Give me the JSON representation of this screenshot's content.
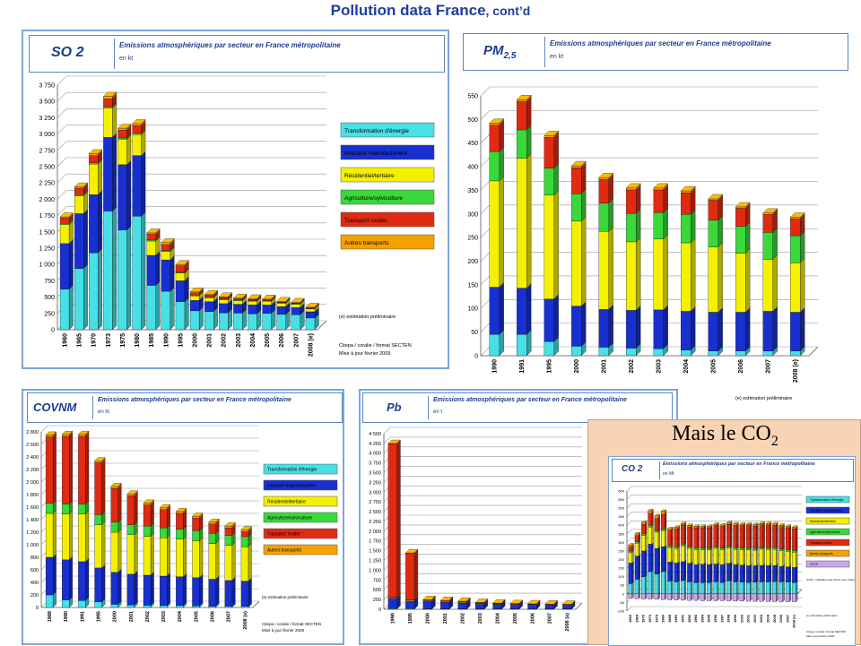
{
  "page": {
    "title_bold": "Pollution data France",
    "title_rest": ", cont’d"
  },
  "colors": {
    "energy": "#47e0e6",
    "industry": "#1830d0",
    "residential": "#f4f000",
    "agriculture": "#3ad83a",
    "road": "#e02a12",
    "other": "#f5a200",
    "utcf": "#caa5ee"
  },
  "labels": {
    "sector_title": "Emissions atmosphériques par secteur en France métropolitaine",
    "estimation": "(e) estimation préliminaire",
    "source1": "Citepa / coralie / format SECTEN",
    "source2": "Mise à jour février 2009",
    "co2_note": "UTCF : Utilisation des Terres, leur Changement et la Forêt"
  },
  "legend": [
    "Transformation d'énergie",
    "Industrie manufacturière",
    "Résidentiel/tertiaire",
    "Agriculture/sylviculture",
    "Transport routier",
    "Autres transports"
  ],
  "co2_extra_legend": "UTCF",
  "co2_title": "Mais le CO",
  "co2_sub": "2",
  "chart_data": [
    {
      "id": "so2",
      "type": "bar",
      "stacked": true,
      "pollutant": "SO 2",
      "unit": "en kt",
      "ylim": [
        0,
        3750
      ],
      "yticks": [
        "0",
        "250",
        "500",
        "750",
        "1 000",
        "1 250",
        "1 500",
        "1 750",
        "2 000",
        "2 250",
        "2 500",
        "2 750",
        "3 000",
        "3 250",
        "3 500",
        "3 750"
      ],
      "categories": [
        "1960",
        "1965",
        "1970",
        "1973",
        "1975",
        "1980",
        "1985",
        "1990",
        "1995",
        "2000",
        "2001",
        "2002",
        "2003",
        "2004",
        "2005",
        "2006",
        "2007",
        "2008 (e)"
      ],
      "series": [
        {
          "name": "Transformation d'énergie",
          "values": [
            620,
            940,
            1180,
            1820,
            1530,
            1740,
            680,
            590,
            430,
            290,
            280,
            260,
            255,
            245,
            250,
            235,
            230,
            180
          ]
        },
        {
          "name": "Industrie manufacturière",
          "values": [
            700,
            840,
            890,
            1130,
            1000,
            930,
            460,
            480,
            320,
            160,
            150,
            140,
            135,
            135,
            130,
            120,
            110,
            95
          ]
        },
        {
          "name": "Résidentiel/tertiaire",
          "values": [
            290,
            270,
            470,
            450,
            390,
            320,
            220,
            130,
            120,
            70,
            60,
            60,
            55,
            55,
            55,
            50,
            50,
            45
          ]
        },
        {
          "name": "Agriculture/sylviculture",
          "values": [
            20,
            20,
            20,
            20,
            20,
            20,
            15,
            15,
            10,
            10,
            10,
            10,
            10,
            10,
            10,
            10,
            10,
            5
          ]
        },
        {
          "name": "Transport routier",
          "values": [
            80,
            100,
            110,
            120,
            120,
            120,
            90,
            90,
            100,
            35,
            30,
            25,
            20,
            20,
            15,
            10,
            10,
            10
          ]
        },
        {
          "name": "Autres transports",
          "values": [
            20,
            20,
            30,
            40,
            30,
            30,
            20,
            30,
            20,
            15,
            10,
            10,
            10,
            10,
            10,
            10,
            10,
            10
          ]
        }
      ]
    },
    {
      "id": "pm25",
      "type": "bar",
      "stacked": true,
      "pollutant": "PM",
      "pollutant_sub": "2,5",
      "unit": "en kt",
      "ylim": [
        0,
        550
      ],
      "yticks": [
        "0",
        "50",
        "100",
        "150",
        "200",
        "250",
        "300",
        "350",
        "400",
        "450",
        "500",
        "550"
      ],
      "categories": [
        "1990",
        "1991",
        "1995",
        "2000",
        "2001",
        "2002",
        "2003",
        "2004",
        "2005",
        "2006",
        "2007",
        "2008 (e)"
      ],
      "series": [
        {
          "name": "Transformation d'énergie",
          "values": [
            45,
            45,
            30,
            20,
            18,
            16,
            15,
            12,
            10,
            10,
            10,
            10
          ]
        },
        {
          "name": "Industrie manufacturière",
          "values": [
            100,
            98,
            90,
            85,
            80,
            80,
            82,
            82,
            82,
            82,
            84,
            82
          ]
        },
        {
          "name": "Résidentiel/tertiaire",
          "values": [
            225,
            275,
            220,
            180,
            165,
            145,
            150,
            145,
            138,
            125,
            110,
            105
          ]
        },
        {
          "name": "Agriculture/sylviculture",
          "values": [
            62,
            60,
            57,
            58,
            60,
            60,
            56,
            60,
            57,
            57,
            57,
            57
          ]
        },
        {
          "name": "Transport routier",
          "values": [
            56,
            60,
            65,
            55,
            50,
            50,
            48,
            46,
            42,
            38,
            38,
            36
          ]
        },
        {
          "name": "Autres transports",
          "values": [
            4,
            4,
            4,
            4,
            4,
            4,
            4,
            4,
            3,
            3,
            3,
            3
          ]
        }
      ]
    },
    {
      "id": "covnm",
      "type": "bar",
      "stacked": true,
      "pollutant": "COVNM",
      "unit": "en kt",
      "ylim": [
        0,
        2800
      ],
      "yticks": [
        "0",
        "200",
        "400",
        "600",
        "800",
        "1 000",
        "1 200",
        "1 400",
        "1 600",
        "1 800",
        "2 000",
        "2 200",
        "2 400",
        "2 600",
        "2 800"
      ],
      "categories": [
        "1988",
        "1990",
        "1991",
        "1995",
        "2000",
        "2001",
        "2002",
        "2003",
        "2004",
        "2005",
        "2006",
        "2007",
        "2008 (e)"
      ],
      "series": [
        {
          "name": "Transformation d'énergie",
          "values": [
            200,
            120,
            110,
            90,
            50,
            40,
            35,
            30,
            30,
            25,
            20,
            20,
            20
          ]
        },
        {
          "name": "Industrie manufacturière",
          "values": [
            600,
            640,
            620,
            540,
            510,
            490,
            480,
            470,
            460,
            450,
            430,
            410,
            400
          ]
        },
        {
          "name": "Résidentiel/tertiaire",
          "values": [
            700,
            730,
            760,
            690,
            640,
            630,
            620,
            610,
            600,
            590,
            570,
            560,
            550
          ]
        },
        {
          "name": "Agriculture/sylviculture",
          "values": [
            160,
            160,
            160,
            160,
            160,
            160,
            160,
            160,
            160,
            160,
            160,
            160,
            160
          ]
        },
        {
          "name": "Transport routier",
          "values": [
            1060,
            1080,
            1080,
            830,
            540,
            460,
            340,
            290,
            250,
            200,
            150,
            120,
            80
          ]
        },
        {
          "name": "Autres transports",
          "values": [
            30,
            30,
            30,
            30,
            30,
            30,
            30,
            30,
            30,
            30,
            30,
            30,
            30
          ]
        }
      ]
    },
    {
      "id": "pb",
      "type": "bar",
      "stacked": true,
      "pollutant": "Pb",
      "unit": "en t",
      "ylim": [
        0,
        4500
      ],
      "yticks": [
        "0",
        "250",
        "500",
        "750",
        "1 000",
        "1 250",
        "1 500",
        "1 750",
        "2 000",
        "2 250",
        "2 500",
        "2 750",
        "3 000",
        "3 250",
        "3 500",
        "3 750",
        "4 000",
        "4 250",
        "4 500"
      ],
      "categories": [
        "1990",
        "1995",
        "2000",
        "2001",
        "2002",
        "2003",
        "2004",
        "2005",
        "2006",
        "2007",
        "2008 (e)"
      ],
      "series": [
        {
          "name": "Transformation d'énergie",
          "values": [
            20,
            15,
            10,
            10,
            10,
            10,
            10,
            10,
            10,
            10,
            10
          ]
        },
        {
          "name": "Industrie manufacturière",
          "values": [
            260,
            200,
            190,
            170,
            150,
            120,
            110,
            95,
            90,
            85,
            80
          ]
        },
        {
          "name": "Résidentiel/tertiaire",
          "values": [
            20,
            20,
            20,
            18,
            18,
            15,
            15,
            15,
            15,
            15,
            15
          ]
        },
        {
          "name": "Agriculture/sylviculture",
          "values": [
            5,
            5,
            5,
            5,
            5,
            5,
            5,
            5,
            5,
            5,
            5
          ]
        },
        {
          "name": "Transport routier",
          "values": [
            3940,
            1200,
            20,
            20,
            20,
            20,
            15,
            15,
            15,
            15,
            15
          ]
        },
        {
          "name": "Autres transports",
          "values": [
            5,
            5,
            5,
            5,
            5,
            5,
            5,
            5,
            5,
            5,
            5
          ]
        }
      ]
    },
    {
      "id": "co2",
      "type": "bar",
      "stacked": true,
      "pollutant": "CO 2",
      "unit": "en Mt",
      "ylim": [
        -100,
        600
      ],
      "yticks": [
        "-100",
        "-50",
        "0",
        "50",
        "100",
        "150",
        "200",
        "250",
        "300",
        "350",
        "400",
        "450",
        "500",
        "550",
        "600"
      ],
      "categories": [
        "1960",
        "1965",
        "1970",
        "1973",
        "1975",
        "1980",
        "1985",
        "1990",
        "1991",
        "1992",
        "1993",
        "1994",
        "1995",
        "1996",
        "1997",
        "1998",
        "1999",
        "2000",
        "2001",
        "2002",
        "2003",
        "2004",
        "2005",
        "2006",
        "2007",
        "2008 (e)"
      ],
      "series": [
        {
          "name": "Transformation d'énergie",
          "values": [
            60,
            85,
            100,
            130,
            115,
            130,
            75,
            70,
            78,
            70,
            65,
            65,
            66,
            70,
            66,
            76,
            70,
            68,
            66,
            68,
            70,
            70,
            72,
            70,
            68,
            66
          ]
        },
        {
          "name": "Industrie manufacturière",
          "values": [
            120,
            135,
            150,
            160,
            150,
            145,
            110,
            110,
            110,
            108,
            105,
            108,
            105,
            104,
            104,
            102,
            100,
            100,
            98,
            96,
            96,
            95,
            93,
            90,
            90,
            88
          ]
        },
        {
          "name": "Résidentiel/tertiaire",
          "values": [
            60,
            75,
            90,
            100,
            95,
            95,
            85,
            85,
            92,
            88,
            88,
            85,
            85,
            92,
            88,
            90,
            90,
            90,
            92,
            90,
            95,
            95,
            95,
            92,
            90,
            90
          ]
        },
        {
          "name": "Agriculture/sylviculture",
          "values": [
            10,
            10,
            10,
            10,
            10,
            10,
            10,
            10,
            10,
            10,
            10,
            10,
            10,
            10,
            10,
            10,
            10,
            10,
            10,
            10,
            10,
            10,
            10,
            10,
            10,
            10
          ]
        },
        {
          "name": "Transport routier",
          "values": [
            25,
            35,
            55,
            70,
            70,
            85,
            90,
            105,
            112,
            115,
            118,
            118,
            120,
            122,
            125,
            128,
            130,
            130,
            132,
            132,
            132,
            132,
            130,
            130,
            128,
            126
          ]
        },
        {
          "name": "Autres transports",
          "values": [
            10,
            10,
            12,
            15,
            15,
            16,
            10,
            8,
            8,
            8,
            8,
            8,
            8,
            8,
            8,
            8,
            8,
            8,
            8,
            8,
            8,
            8,
            8,
            8,
            8,
            8
          ]
        },
        {
          "name": "UTCF",
          "values": [
            -25,
            -28,
            -30,
            -30,
            -32,
            -34,
            -35,
            -36,
            -37,
            -38,
            -38,
            -40,
            -40,
            -40,
            -40,
            -41,
            -42,
            -42,
            -43,
            -44,
            -44,
            -45,
            -45,
            -46,
            -46,
            -46
          ]
        }
      ]
    }
  ]
}
